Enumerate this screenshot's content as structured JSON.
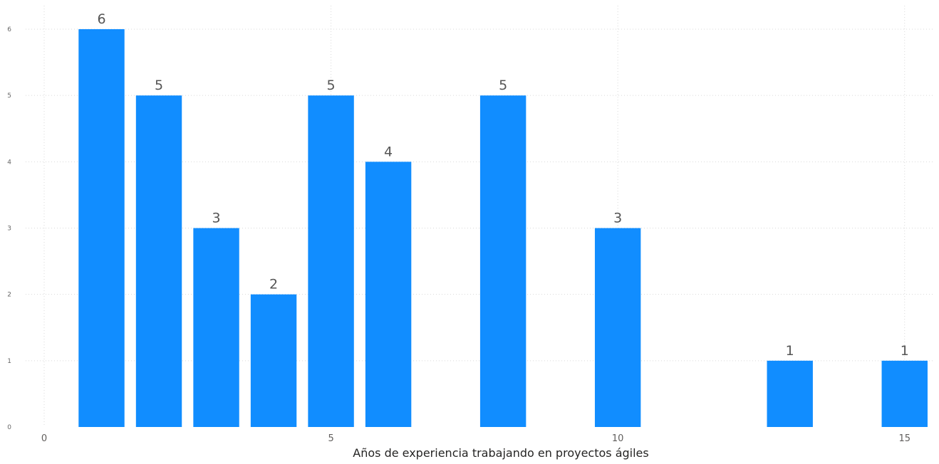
{
  "chart_data": {
    "type": "bar",
    "title": "",
    "xlabel": "Años de experiencia trabajando en proyectos ágiles",
    "ylabel": "",
    "x": [
      1,
      2,
      3,
      4,
      5,
      6,
      8,
      10,
      13,
      15
    ],
    "values": [
      6,
      5,
      3,
      2,
      5,
      4,
      5,
      3,
      1,
      1
    ],
    "xlim": [
      0,
      15.5
    ],
    "ylim": [
      0,
      6
    ],
    "x_ticks": [
      0,
      5,
      10,
      15
    ],
    "y_ticks": [
      0,
      1,
      2,
      3,
      4,
      5,
      6
    ],
    "grid": true,
    "data_labels": true,
    "bar_color": "#118DFF"
  }
}
